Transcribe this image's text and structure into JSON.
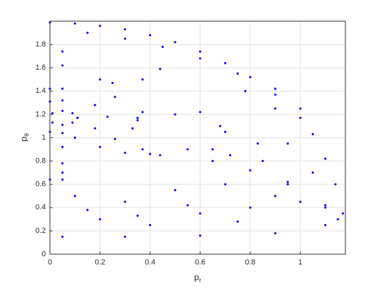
{
  "chart_data": {
    "type": "scatter",
    "color": "#0000ff",
    "grid": true,
    "xlabel": [
      "p",
      "r"
    ],
    "ylabel": [
      "p",
      "θ"
    ],
    "xlim": [
      0,
      1.18
    ],
    "ylim": [
      0,
      2
    ],
    "xticks": [
      0,
      0.2,
      0.4,
      0.6,
      0.8,
      1
    ],
    "yticks": [
      0,
      0.2,
      0.4,
      0.6,
      0.8,
      1,
      1.2,
      1.4,
      1.6,
      1.8
    ],
    "x": [
      0,
      0.1,
      0.2,
      0.3,
      0.4,
      0.5,
      0.6,
      0.7,
      0.8,
      0.9,
      1.0,
      1.05,
      1.1,
      1.14,
      1.17,
      0.11,
      0.09,
      0.05,
      0.01,
      0.01,
      0.05,
      0.09,
      0.23,
      0.18,
      0.05,
      0,
      0,
      0.05,
      0.18,
      0.35,
      0.26,
      0.05,
      0,
      0.05,
      0.26,
      0.5,
      0.37,
      0.05,
      0.05,
      0.37,
      0.6,
      0.44,
      0.05,
      0.05,
      0.44,
      0.35,
      0.37,
      0.33,
      0.2,
      0.25,
      0.68,
      0.7,
      0.83,
      0.72,
      0.78,
      0.9,
      0.15,
      0.3,
      0.45,
      0.6,
      0.75,
      0.9,
      1.0,
      0.1,
      0.2,
      0.3,
      0.4,
      0.5,
      0.6,
      0.7,
      0.8,
      0.9,
      1.0,
      1.1,
      0.15,
      0.35,
      0.55,
      0.75,
      0.95,
      1.05,
      0.85,
      0.95,
      0.65,
      0.05,
      0.3,
      0.6,
      0.9,
      1.1,
      1.15,
      0.1,
      0.2,
      0.3,
      0.4,
      0.55,
      0.65,
      0.8,
      0.95,
      1.1,
      0,
      0.05
    ],
    "y": [
      1.99,
      1.98,
      1.96,
      1.93,
      1.88,
      1.82,
      1.74,
      1.64,
      1.52,
      1.37,
      1.17,
      1.03,
      0.82,
      0.6,
      0.35,
      1.17,
      1.21,
      1.23,
      1.21,
      1.13,
      1.11,
      1.13,
      1.18,
      1.28,
      1.32,
      1.31,
      1.05,
      1.04,
      1.08,
      1.17,
      1.35,
      1.42,
      1.42,
      0.92,
      0.99,
      1.2,
      1.5,
      1.62,
      0.78,
      0.9,
      1.22,
      1.59,
      1.74,
      0.7,
      0.85,
      1.15,
      1.22,
      1.08,
      1.5,
      1.47,
      1.1,
      1.05,
      0.95,
      0.85,
      1.4,
      1.25,
      1.9,
      1.85,
      1.78,
      1.68,
      1.55,
      1.42,
      1.25,
      0.5,
      0.3,
      0.45,
      0.25,
      0.55,
      0.35,
      0.6,
      0.4,
      0.5,
      0.45,
      0.4,
      0.38,
      0.33,
      0.42,
      0.28,
      0.62,
      0.7,
      0.8,
      0.95,
      0.9,
      0.15,
      0.15,
      0.16,
      0.18,
      0.25,
      0.3,
      1.0,
      0.92,
      0.87,
      0.86,
      0.9,
      0.8,
      0.72,
      0.6,
      0.42,
      0.64,
      0.64
    ]
  }
}
